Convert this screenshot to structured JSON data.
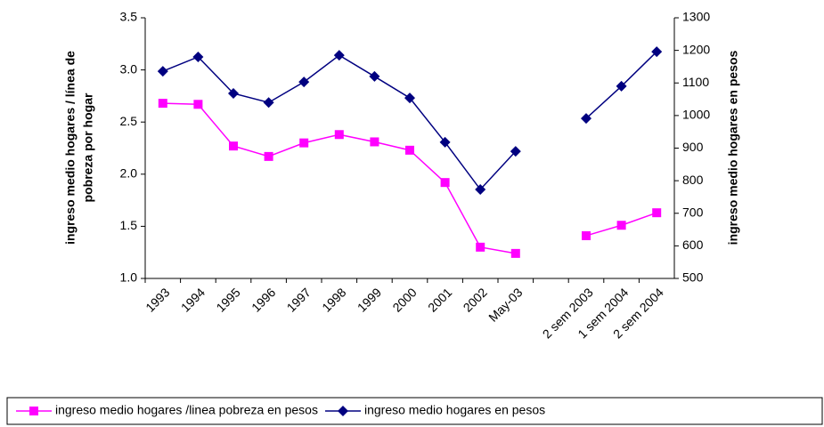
{
  "chart_data": {
    "type": "line",
    "categories": [
      "1993",
      "1994",
      "1995",
      "1996",
      "1997",
      "1998",
      "1999",
      "2000",
      "2001",
      "2002",
      "May-03",
      null,
      "2 sem 2003",
      "1 sem 2004",
      "2 sem 2004"
    ],
    "series": [
      {
        "name": "ingreso medio hogares /linea pobreza en pesos",
        "color": "#ff00ff",
        "marker": "square",
        "values": [
          2.68,
          2.67,
          2.27,
          2.17,
          2.3,
          2.38,
          2.31,
          2.23,
          1.92,
          1.3,
          1.24,
          null,
          1.41,
          1.51,
          1.63
        ]
      },
      {
        "name": "ingreso medio hogares en pesos",
        "color": "#000080",
        "marker": "diamond",
        "axis": "y2",
        "values": [
          1136,
          1180,
          1068,
          1040,
          1103,
          1185,
          1120,
          1054,
          918,
          773,
          890,
          null,
          991,
          1090,
          1196
        ]
      }
    ],
    "ylabel": [
      "ingreso medio hogares / línea de",
      "pobreza por hogar"
    ],
    "y2label": "ingreso medio hogares en pesos",
    "ylim": [
      1.0,
      3.5
    ],
    "yticks": [
      {
        "value": 1.0,
        "label": "1.0"
      },
      1.5,
      {
        "value": 2.0,
        "label": "2.0"
      },
      2.5,
      {
        "value": 3.0,
        "label": "3.0"
      },
      3.5
    ],
    "y2lim": [
      500,
      1300
    ],
    "y2ticks": [
      500,
      600,
      700,
      800,
      900,
      1000,
      1100,
      1200,
      1300
    ],
    "legend": "bottom"
  }
}
